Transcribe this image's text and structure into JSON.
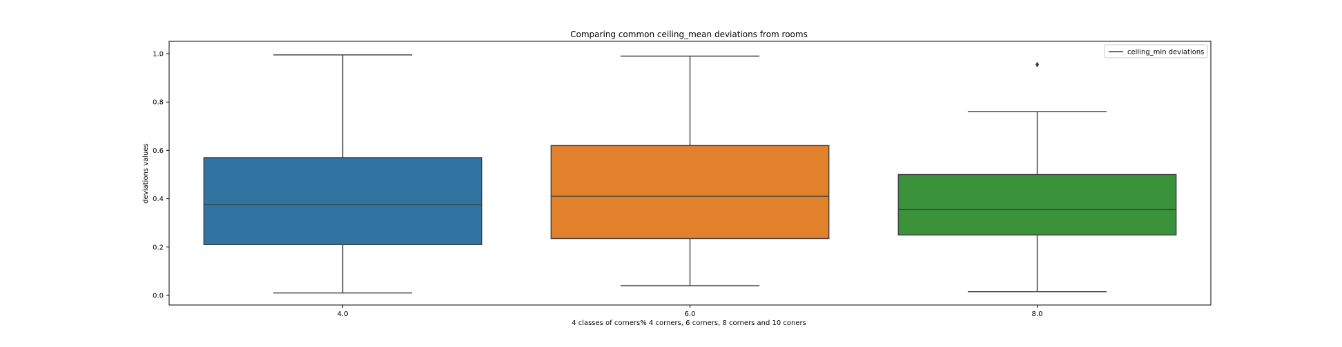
{
  "chart_data": {
    "type": "box",
    "title": "Comparing common ceiling_mean deviations from rooms",
    "xlabel": "4 classes of corners% 4 corners, 6 corners, 8 corners and 10 coners",
    "ylabel": "deviations values",
    "categories": [
      "4.0",
      "6.0",
      "8.0"
    ],
    "ylim": [
      -0.04,
      1.05
    ],
    "yticks": [
      "0.0",
      "0.2",
      "0.4",
      "0.6",
      "0.8",
      "1.0"
    ],
    "grid": false,
    "legend": {
      "position": "top-right",
      "entries": [
        "ceiling_min deviations"
      ]
    },
    "boxes": [
      {
        "category": "4.0",
        "whisker_low": 0.01,
        "q1": 0.21,
        "median": 0.375,
        "q3": 0.57,
        "whisker_high": 0.995,
        "outliers": [],
        "color": "#3274a1"
      },
      {
        "category": "6.0",
        "whisker_low": 0.04,
        "q1": 0.235,
        "median": 0.41,
        "q3": 0.62,
        "whisker_high": 0.99,
        "outliers": [],
        "color": "#e1812c"
      },
      {
        "category": "8.0",
        "whisker_low": 0.015,
        "q1": 0.25,
        "median": 0.355,
        "q3": 0.5,
        "whisker_high": 0.76,
        "outliers": [
          0.955
        ],
        "color": "#3a923a"
      }
    ]
  }
}
